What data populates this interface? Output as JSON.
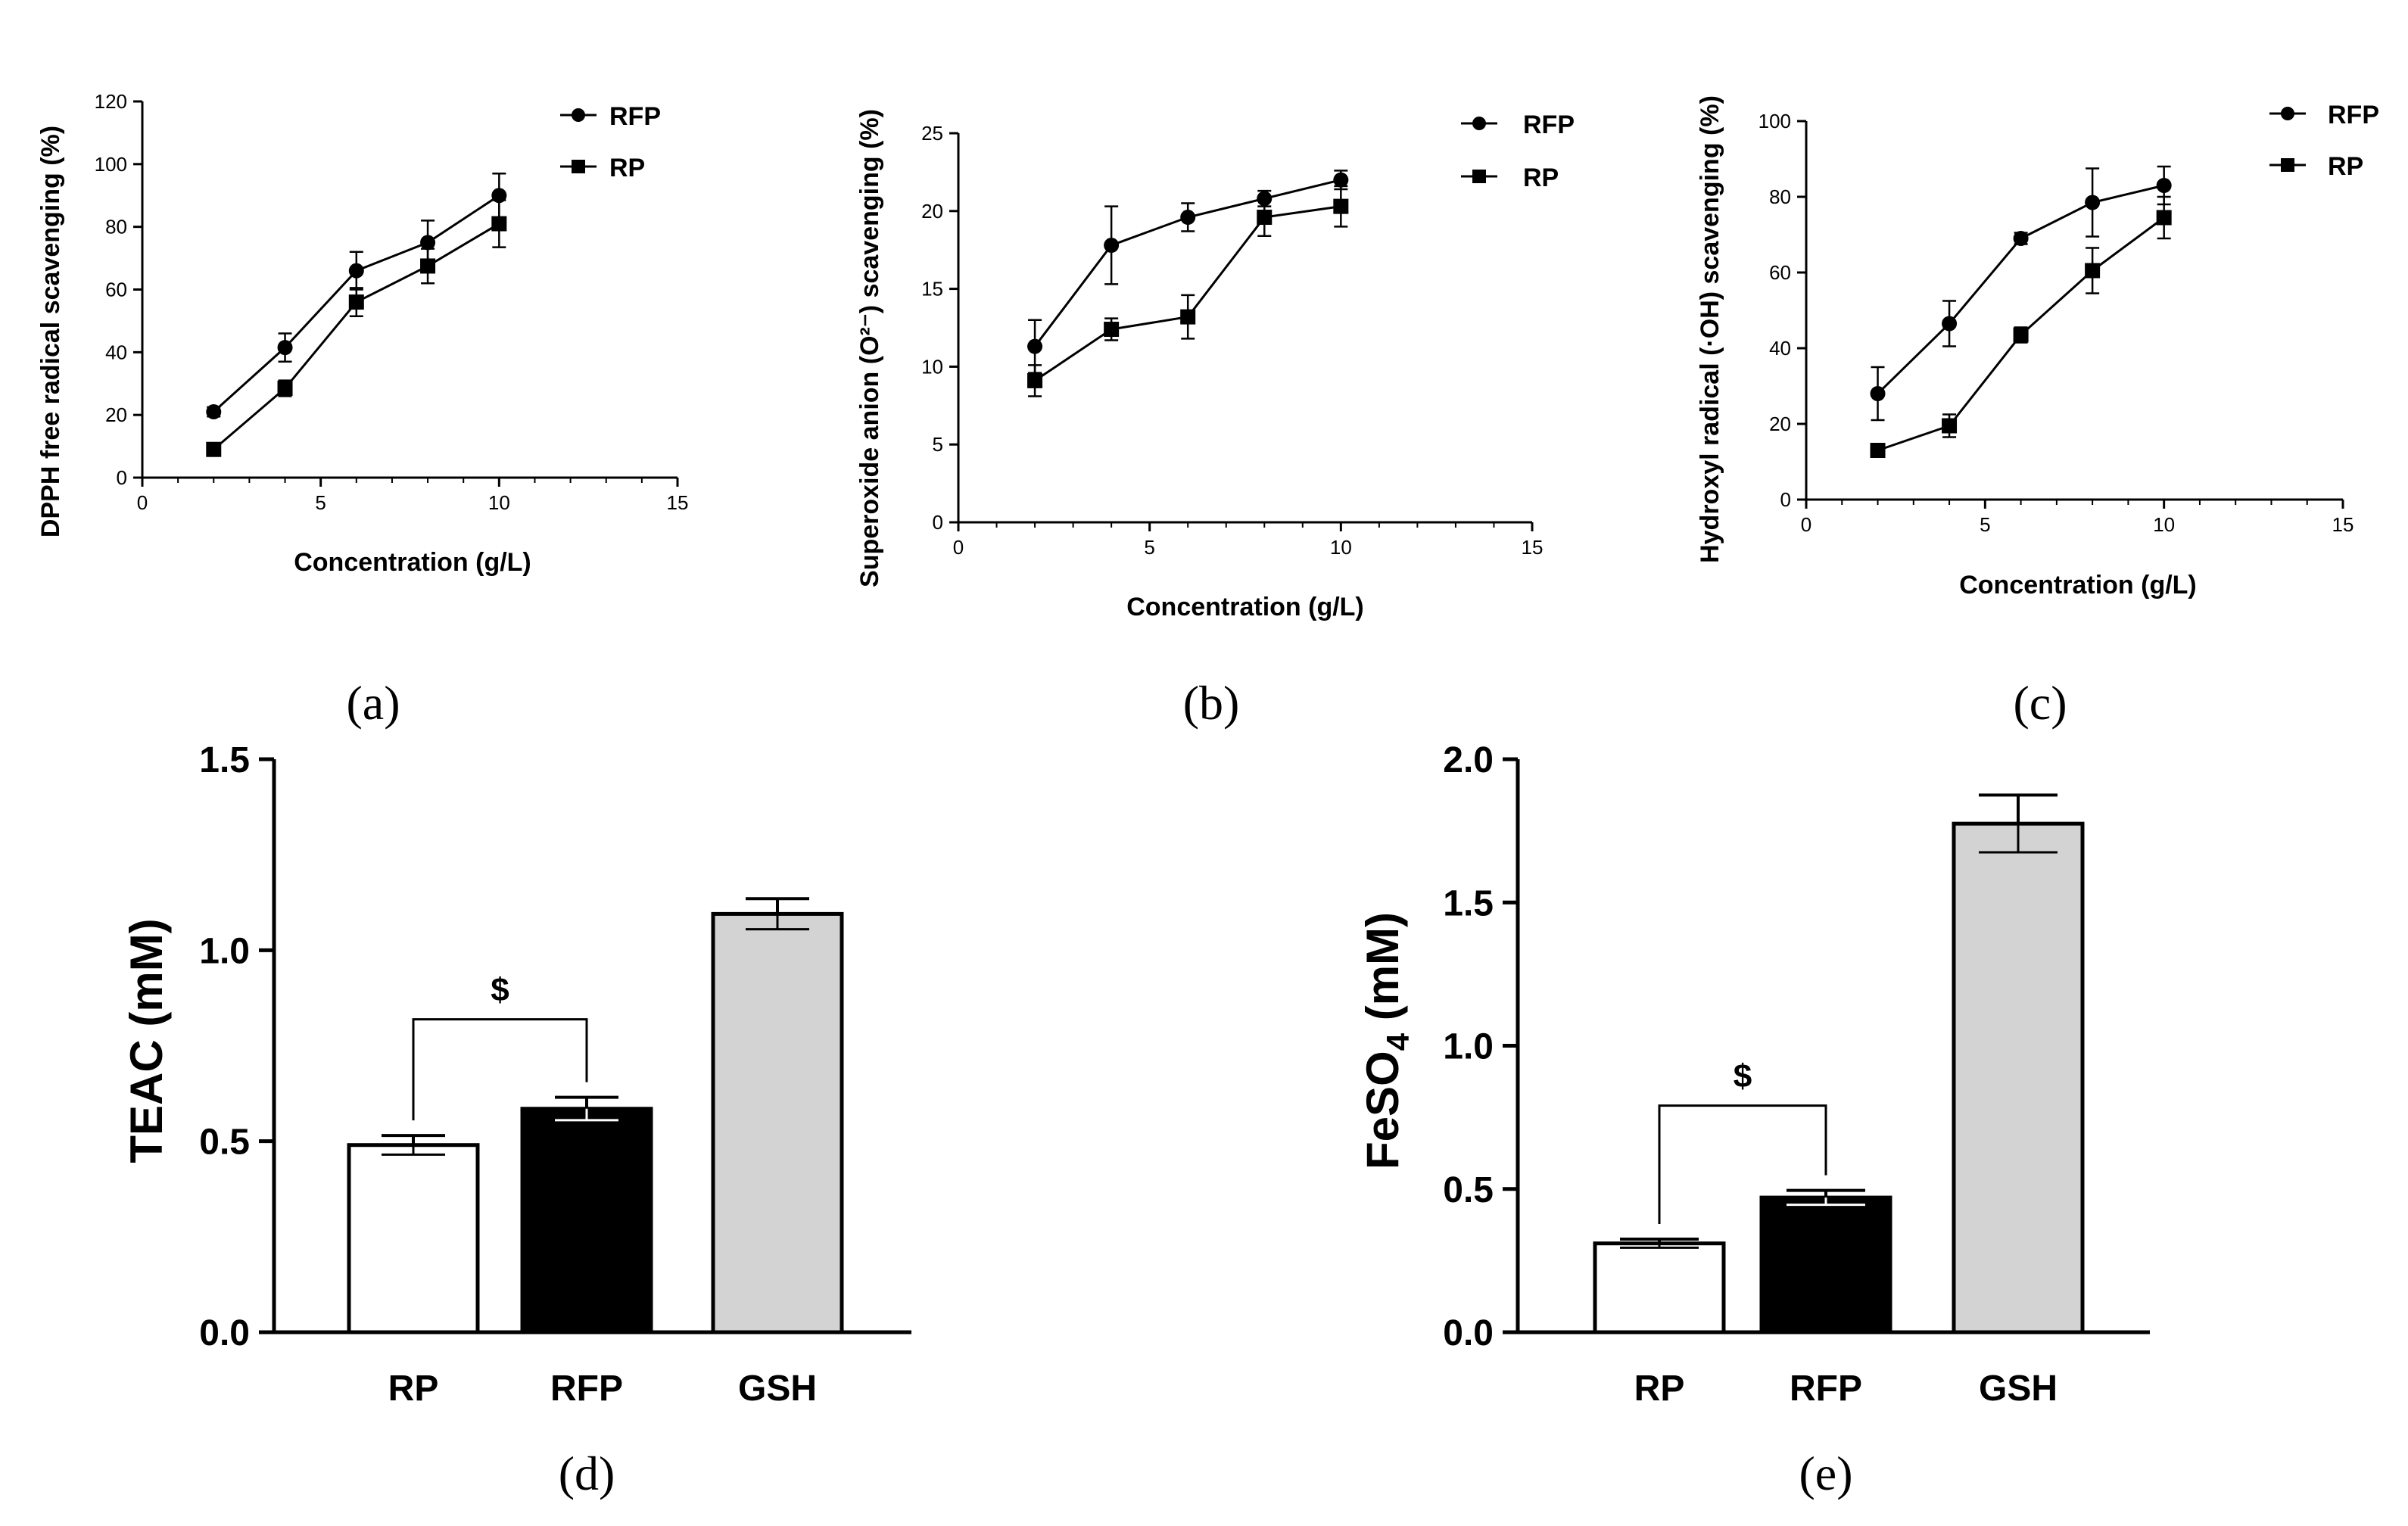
{
  "panel_labels": [
    "(a)",
    "(b)",
    "(c)",
    "(d)",
    "(e)"
  ],
  "legend_labels": [
    "RFP",
    "RP"
  ],
  "bar_series": {
    "RP": "RP",
    "RFP": "RFP",
    "GSH": "GSH"
  },
  "colors": {
    "RP_fill": "#ffffff",
    "RFP_fill": "#000000",
    "GSH_fill": "#d3d3d3",
    "stroke": "#000000"
  },
  "chart_data": [
    {
      "panel": "(a)",
      "type": "line",
      "xlabel": "Concentration (g/L)",
      "ylabel": "DPPH free radical scavenging (%)",
      "xlim": [
        0,
        15
      ],
      "ylim": [
        0,
        120
      ],
      "x_ticks": [
        0,
        5,
        10,
        15
      ],
      "y_ticks": [
        0,
        20,
        40,
        60,
        80,
        100,
        120
      ],
      "x": [
        2,
        4,
        6,
        8,
        10
      ],
      "series": [
        {
          "name": "RFP",
          "marker": "circle",
          "values": [
            21,
            41.5,
            66,
            75,
            90
          ],
          "errors": [
            1.5,
            4.5,
            6,
            7,
            7
          ]
        },
        {
          "name": "RP",
          "marker": "square",
          "values": [
            9,
            28.5,
            56,
            67.5,
            81
          ],
          "errors": [
            1,
            2.5,
            4.5,
            5.5,
            7.5
          ]
        }
      ],
      "legend": "top-right"
    },
    {
      "panel": "(b)",
      "type": "line",
      "xlabel": "Concentration (g/L)",
      "ylabel": "Superoxide anion (O²⁻) scavenging (%)",
      "xlim": [
        0,
        15
      ],
      "ylim": [
        0,
        25
      ],
      "x_ticks": [
        0,
        5,
        10,
        15
      ],
      "y_ticks": [
        0,
        5,
        10,
        15,
        20,
        25
      ],
      "x": [
        2,
        4,
        6,
        8,
        10
      ],
      "series": [
        {
          "name": "RFP",
          "marker": "circle",
          "values": [
            11.3,
            17.8,
            19.6,
            20.8,
            22
          ],
          "errors": [
            1.7,
            2.5,
            0.9,
            0.5,
            0.6
          ]
        },
        {
          "name": "RP",
          "marker": "square",
          "values": [
            9.1,
            12.4,
            13.2,
            19.6,
            20.3
          ],
          "errors": [
            1.0,
            0.7,
            1.4,
            1.2,
            1.3
          ]
        }
      ],
      "legend": "top-right"
    },
    {
      "panel": "(c)",
      "type": "line",
      "xlabel": "Concentration (g/L)",
      "ylabel": "Hydroxyl radical (·OH) scavenging (%)",
      "xlim": [
        0,
        15
      ],
      "ylim": [
        0,
        100
      ],
      "x_ticks": [
        0,
        5,
        10,
        15
      ],
      "y_ticks": [
        0,
        20,
        40,
        60,
        80,
        100
      ],
      "x": [
        2,
        4,
        6,
        8,
        10
      ],
      "series": [
        {
          "name": "RFP",
          "marker": "circle",
          "values": [
            28,
            46.5,
            69,
            78.5,
            83
          ],
          "errors": [
            7,
            6,
            1.5,
            9,
            5
          ]
        },
        {
          "name": "RP",
          "marker": "square",
          "values": [
            13,
            19.5,
            43.5,
            60.5,
            74.5
          ],
          "errors": [
            1.5,
            3,
            2,
            6,
            5.5
          ]
        }
      ],
      "legend": "top-right"
    },
    {
      "panel": "(d)",
      "type": "bar",
      "ylabel": "TEAC (mM)",
      "ylim": [
        0,
        1.5
      ],
      "y_ticks": [
        "0.0",
        "0.5",
        "1.0",
        "1.5"
      ],
      "categories": [
        "RP",
        "RFP",
        "GSH"
      ],
      "values": [
        0.49,
        0.585,
        1.095
      ],
      "errors": [
        0.025,
        0.03,
        0.04
      ],
      "significance": {
        "from": "RP",
        "to": "RFP",
        "label": "$"
      }
    },
    {
      "panel": "(e)",
      "type": "bar",
      "ylabel": "FeSO4 (mM)",
      "ylim": [
        0,
        2.0
      ],
      "y_ticks": [
        "0.0",
        "0.5",
        "1.0",
        "1.5",
        "2.0"
      ],
      "categories": [
        "RP",
        "RFP",
        "GSH"
      ],
      "values": [
        0.31,
        0.47,
        1.775
      ],
      "errors": [
        0.015,
        0.025,
        0.1
      ],
      "significance": {
        "from": "RP",
        "to": "RFP",
        "label": "$"
      }
    }
  ]
}
